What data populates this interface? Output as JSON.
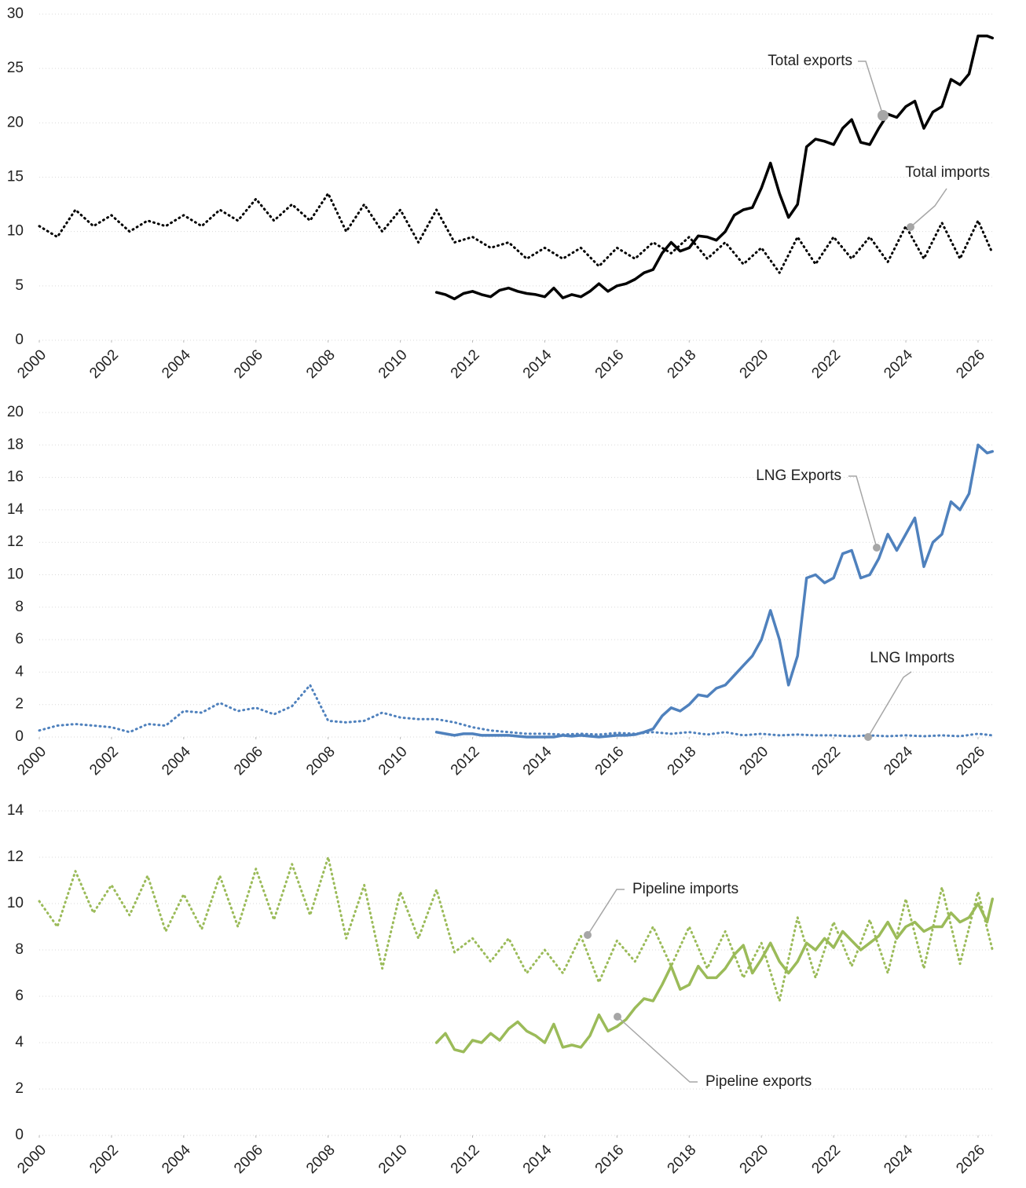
{
  "chart_data": [
    {
      "type": "line",
      "xlim": [
        2000,
        2026.5
      ],
      "xticks": [
        2000,
        2002,
        2004,
        2006,
        2008,
        2010,
        2012,
        2014,
        2016,
        2018,
        2020,
        2022,
        2024,
        2026
      ],
      "ylim": [
        0,
        30
      ],
      "yticks": [
        0,
        5,
        10,
        15,
        20,
        25,
        30
      ],
      "grid": true,
      "series": [
        {
          "name": "Total exports",
          "color": "#000000",
          "line_style": "solid",
          "x": [
            2011,
            2011.25,
            2011.5,
            2011.75,
            2012,
            2012.25,
            2012.5,
            2012.75,
            2013,
            2013.25,
            2013.5,
            2013.75,
            2014,
            2014.25,
            2014.5,
            2014.75,
            2015,
            2015.25,
            2015.5,
            2015.75,
            2016,
            2016.25,
            2016.5,
            2016.75,
            2017,
            2017.25,
            2017.5,
            2017.75,
            2018,
            2018.25,
            2018.5,
            2018.75,
            2019,
            2019.25,
            2019.5,
            2019.75,
            2020,
            2020.25,
            2020.5,
            2020.75,
            2021,
            2021.25,
            2021.5,
            2021.75,
            2022,
            2022.25,
            2022.5,
            2022.75,
            2023,
            2023.25,
            2023.5,
            2023.75,
            2024,
            2024.25,
            2024.5,
            2024.75,
            2025,
            2025.25,
            2025.5,
            2025.75,
            2026,
            2026.25,
            2026.4
          ],
          "values": [
            4.4,
            4.2,
            3.8,
            4.3,
            4.5,
            4.2,
            4.0,
            4.6,
            4.8,
            4.5,
            4.3,
            4.2,
            4.0,
            4.8,
            3.9,
            4.2,
            4.0,
            4.5,
            5.2,
            4.5,
            5.0,
            5.2,
            5.6,
            6.2,
            6.5,
            8.0,
            9.0,
            8.2,
            8.5,
            9.6,
            9.5,
            9.2,
            10.0,
            11.5,
            12.0,
            12.2,
            14.0,
            16.3,
            13.5,
            11.3,
            12.5,
            17.8,
            18.5,
            18.3,
            18.0,
            19.5,
            20.3,
            18.2,
            18.0,
            19.5,
            20.8,
            20.5,
            21.5,
            22.0,
            19.5,
            21.0,
            21.5,
            24.0,
            23.5,
            24.5,
            28.0,
            28.0,
            27.8
          ]
        },
        {
          "name": "Total imports",
          "color": "#000000",
          "line_style": "dotted",
          "x": [
            2000,
            2000.5,
            2001,
            2001.5,
            2002,
            2002.5,
            2003,
            2003.5,
            2004,
            2004.5,
            2005,
            2005.5,
            2006,
            2006.5,
            2007,
            2007.5,
            2008,
            2008.5,
            2009,
            2009.5,
            2010,
            2010.5,
            2011,
            2011.5,
            2012,
            2012.5,
            2013,
            2013.5,
            2014,
            2014.5,
            2015,
            2015.5,
            2016,
            2016.5,
            2017,
            2017.5,
            2018,
            2018.5,
            2019,
            2019.5,
            2020,
            2020.5,
            2021,
            2021.5,
            2022,
            2022.5,
            2023,
            2023.5,
            2024,
            2024.5,
            2025,
            2025.5,
            2026,
            2026.4
          ],
          "values": [
            10.5,
            9.5,
            12,
            10.5,
            11.5,
            10,
            11,
            10.5,
            11.5,
            10.5,
            12,
            11,
            13,
            11,
            12.5,
            11,
            13.5,
            10,
            12.5,
            10,
            12,
            9,
            12,
            9,
            9.5,
            8.5,
            9,
            7.5,
            8.5,
            7.5,
            8.5,
            6.8,
            8.5,
            7.5,
            9,
            8,
            9.5,
            7.5,
            9,
            7,
            8.5,
            6.2,
            9.5,
            7,
            9.5,
            7.5,
            9.5,
            7.2,
            10.5,
            7.5,
            10.8,
            7.5,
            11,
            8
          ]
        }
      ]
    },
    {
      "type": "line",
      "xlim": [
        2000,
        2026.5
      ],
      "xticks": [
        2000,
        2002,
        2004,
        2006,
        2008,
        2010,
        2012,
        2014,
        2016,
        2018,
        2020,
        2022,
        2024,
        2026
      ],
      "ylim": [
        0,
        20
      ],
      "yticks": [
        0,
        2,
        4,
        6,
        8,
        10,
        12,
        14,
        16,
        18,
        20
      ],
      "grid": true,
      "series": [
        {
          "name": "LNG Exports",
          "color": "#4f81bd",
          "line_style": "solid",
          "x": [
            2011,
            2011.25,
            2011.5,
            2011.75,
            2012,
            2012.25,
            2012.5,
            2012.75,
            2013,
            2013.25,
            2013.5,
            2013.75,
            2014,
            2014.25,
            2014.5,
            2014.75,
            2015,
            2015.25,
            2015.5,
            2015.75,
            2016,
            2016.25,
            2016.5,
            2016.75,
            2017,
            2017.25,
            2017.5,
            2017.75,
            2018,
            2018.25,
            2018.5,
            2018.75,
            2019,
            2019.25,
            2019.5,
            2019.75,
            2020,
            2020.25,
            2020.5,
            2020.75,
            2021,
            2021.25,
            2021.5,
            2021.75,
            2022,
            2022.25,
            2022.5,
            2022.75,
            2023,
            2023.25,
            2023.5,
            2023.75,
            2024,
            2024.25,
            2024.5,
            2024.75,
            2025,
            2025.25,
            2025.5,
            2025.75,
            2026,
            2026.25,
            2026.4
          ],
          "values": [
            0.3,
            0.2,
            0.1,
            0.2,
            0.2,
            0.1,
            0.1,
            0.1,
            0.1,
            0.05,
            0,
            0,
            0,
            0,
            0.1,
            0.05,
            0.1,
            0.05,
            0,
            0.05,
            0.1,
            0.1,
            0.15,
            0.3,
            0.5,
            1.3,
            1.8,
            1.6,
            2.0,
            2.6,
            2.5,
            3.0,
            3.2,
            3.8,
            4.4,
            5.0,
            6.0,
            7.8,
            6.0,
            3.2,
            5.0,
            9.8,
            10.0,
            9.5,
            9.8,
            11.3,
            11.5,
            9.8,
            10.0,
            11.0,
            12.5,
            11.5,
            12.5,
            13.5,
            10.5,
            12.0,
            12.5,
            14.5,
            14.0,
            15.0,
            18.0,
            17.5,
            17.6
          ]
        },
        {
          "name": "LNG Imports",
          "color": "#4f81bd",
          "line_style": "dotted",
          "x": [
            2000,
            2000.5,
            2001,
            2001.5,
            2002,
            2002.5,
            2003,
            2003.5,
            2004,
            2004.5,
            2005,
            2005.5,
            2006,
            2006.5,
            2007,
            2007.5,
            2008,
            2008.5,
            2009,
            2009.5,
            2010,
            2010.5,
            2011,
            2011.5,
            2012,
            2012.5,
            2013,
            2013.5,
            2014,
            2014.5,
            2015,
            2015.5,
            2016,
            2016.5,
            2017,
            2017.5,
            2018,
            2018.5,
            2019,
            2019.5,
            2020,
            2020.5,
            2021,
            2021.5,
            2022,
            2022.5,
            2023,
            2023.5,
            2024,
            2024.5,
            2025,
            2025.5,
            2026,
            2026.4
          ],
          "values": [
            0.4,
            0.7,
            0.8,
            0.7,
            0.6,
            0.3,
            0.8,
            0.7,
            1.6,
            1.5,
            2.1,
            1.6,
            1.8,
            1.4,
            1.9,
            3.2,
            1.0,
            0.9,
            1.0,
            1.5,
            1.2,
            1.1,
            1.1,
            0.9,
            0.6,
            0.4,
            0.3,
            0.2,
            0.2,
            0.15,
            0.2,
            0.15,
            0.25,
            0.2,
            0.3,
            0.2,
            0.3,
            0.15,
            0.3,
            0.1,
            0.2,
            0.1,
            0.15,
            0.1,
            0.1,
            0.05,
            0.1,
            0.05,
            0.1,
            0.05,
            0.1,
            0.05,
            0.2,
            0.1
          ]
        }
      ]
    },
    {
      "type": "line",
      "xlim": [
        2000,
        2026.5
      ],
      "xticks": [
        2000,
        2002,
        2004,
        2006,
        2008,
        2010,
        2012,
        2014,
        2016,
        2018,
        2020,
        2022,
        2024,
        2026
      ],
      "ylim": [
        0,
        14
      ],
      "yticks": [
        0,
        2,
        4,
        6,
        8,
        10,
        12,
        14
      ],
      "grid": true,
      "series": [
        {
          "name": "Pipeline exports",
          "color": "#9bbb59",
          "line_style": "solid",
          "x": [
            2011,
            2011.25,
            2011.5,
            2011.75,
            2012,
            2012.25,
            2012.5,
            2012.75,
            2013,
            2013.25,
            2013.5,
            2013.75,
            2014,
            2014.25,
            2014.5,
            2014.75,
            2015,
            2015.25,
            2015.5,
            2015.75,
            2016,
            2016.25,
            2016.5,
            2016.75,
            2017,
            2017.25,
            2017.5,
            2017.75,
            2018,
            2018.25,
            2018.5,
            2018.75,
            2019,
            2019.25,
            2019.5,
            2019.75,
            2020,
            2020.25,
            2020.5,
            2020.75,
            2021,
            2021.25,
            2021.5,
            2021.75,
            2022,
            2022.25,
            2022.5,
            2022.75,
            2023,
            2023.25,
            2023.5,
            2023.75,
            2024,
            2024.25,
            2024.5,
            2024.75,
            2025,
            2025.25,
            2025.5,
            2025.75,
            2026,
            2026.25,
            2026.4
          ],
          "values": [
            4.0,
            4.4,
            3.7,
            3.6,
            4.1,
            4.0,
            4.4,
            4.1,
            4.6,
            4.9,
            4.5,
            4.3,
            4.0,
            4.8,
            3.8,
            3.9,
            3.8,
            4.3,
            5.2,
            4.5,
            4.7,
            5.0,
            5.5,
            5.9,
            5.8,
            6.5,
            7.3,
            6.3,
            6.5,
            7.3,
            6.8,
            6.8,
            7.2,
            7.8,
            8.2,
            7.0,
            7.6,
            8.3,
            7.5,
            7.0,
            7.5,
            8.3,
            8.0,
            8.5,
            8.1,
            8.8,
            8.4,
            8.0,
            8.3,
            8.6,
            9.2,
            8.5,
            9.0,
            9.2,
            8.8,
            9.0,
            9.0,
            9.6,
            9.2,
            9.4,
            10.0,
            9.2,
            10.2
          ]
        },
        {
          "name": "Pipeline imports",
          "color": "#9bbb59",
          "line_style": "dotted",
          "x": [
            2000,
            2000.5,
            2001,
            2001.5,
            2002,
            2002.5,
            2003,
            2003.5,
            2004,
            2004.5,
            2005,
            2005.5,
            2006,
            2006.5,
            2007,
            2007.5,
            2008,
            2008.5,
            2009,
            2009.5,
            2010,
            2010.5,
            2011,
            2011.5,
            2012,
            2012.5,
            2013,
            2013.5,
            2014,
            2014.5,
            2015,
            2015.5,
            2016,
            2016.5,
            2017,
            2017.5,
            2018,
            2018.5,
            2019,
            2019.5,
            2020,
            2020.5,
            2021,
            2021.5,
            2022,
            2022.5,
            2023,
            2023.5,
            2024,
            2024.5,
            2025,
            2025.5,
            2026,
            2026.4
          ],
          "values": [
            10.1,
            9.0,
            11.4,
            9.6,
            10.8,
            9.5,
            11.2,
            8.8,
            10.4,
            8.9,
            11.2,
            9.0,
            11.5,
            9.3,
            11.7,
            9.5,
            12.0,
            8.5,
            10.8,
            7.2,
            10.5,
            8.5,
            10.6,
            7.9,
            8.5,
            7.5,
            8.5,
            7.0,
            8.0,
            7.0,
            8.6,
            6.6,
            8.4,
            7.5,
            9.0,
            7.3,
            9.0,
            7.2,
            8.8,
            6.8,
            8.3,
            5.8,
            9.4,
            6.8,
            9.2,
            7.3,
            9.3,
            7.0,
            10.2,
            7.2,
            10.7,
            7.4,
            10.5,
            8.0
          ]
        }
      ]
    }
  ]
}
